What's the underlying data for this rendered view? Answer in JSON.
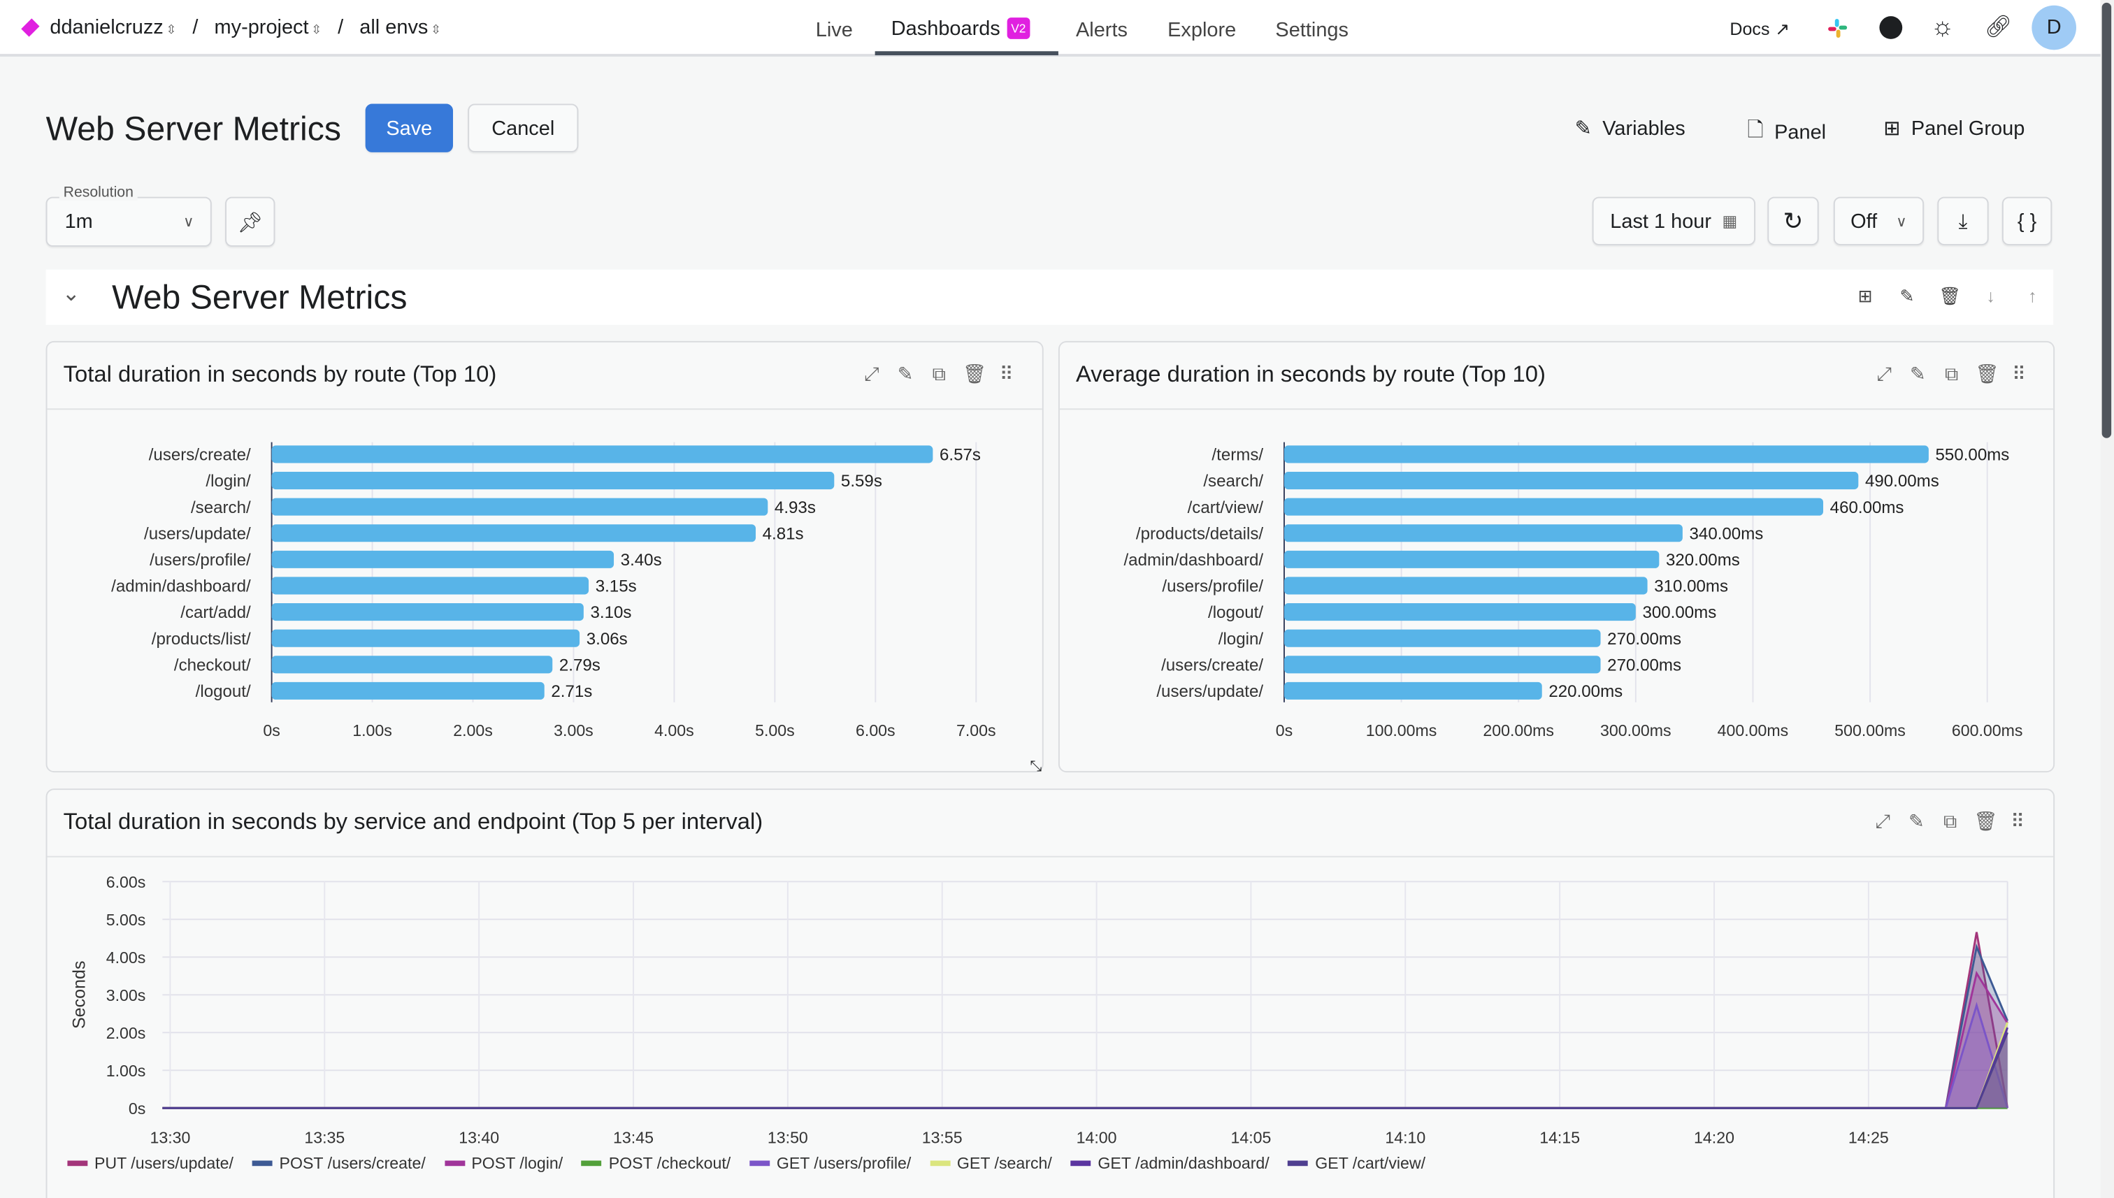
{
  "topbar": {
    "breadcrumb": [
      {
        "label": "ddanielcruzz"
      },
      {
        "label": "my-project"
      },
      {
        "label": "all envs"
      }
    ],
    "separator": "/",
    "brand_color": "#e020e0",
    "nav": [
      {
        "label": "Live"
      },
      {
        "label": "Dashboards",
        "badge": "V2",
        "active": true
      },
      {
        "label": "Alerts"
      },
      {
        "label": "Explore"
      },
      {
        "label": "Settings"
      }
    ],
    "docs_label": "Docs",
    "avatar_initial": "D",
    "icons": [
      "external-link-icon",
      "slack-icon",
      "github-icon",
      "sun-icon",
      "link-icon"
    ]
  },
  "header": {
    "title": "Web Server Metrics",
    "save_label": "Save",
    "cancel_label": "Cancel",
    "save_color": "#3779d9",
    "actions": [
      {
        "label": "Variables",
        "icon": "pencil-icon"
      },
      {
        "label": "Panel",
        "icon": "add-file-icon"
      },
      {
        "label": "Panel Group",
        "icon": "add-box-icon"
      }
    ]
  },
  "toolbar": {
    "resolution_label": "Resolution",
    "resolution_value": "1m",
    "time_range": "Last 1 hour",
    "refresh_interval": "Off",
    "json_label": "{ }"
  },
  "group": {
    "title": "Web Server Metrics"
  },
  "panels": [
    {
      "title": "Total duration in seconds by route (Top 10)"
    },
    {
      "title": "Average duration in seconds by route (Top 10)"
    },
    {
      "title": "Total duration in seconds by service and endpoint (Top 5 per interval)"
    }
  ],
  "chart_data": [
    {
      "type": "bar",
      "orientation": "horizontal",
      "color": "#58b4e8",
      "categories": [
        "/users/create/",
        "/login/",
        "/search/",
        "/users/update/",
        "/users/profile/",
        "/admin/dashboard/",
        "/cart/add/",
        "/products/list/",
        "/checkout/",
        "/logout/"
      ],
      "values": [
        6.57,
        5.59,
        4.93,
        4.81,
        3.4,
        3.15,
        3.1,
        3.06,
        2.79,
        2.71
      ],
      "value_labels": [
        "6.57s",
        "5.59s",
        "4.93s",
        "4.81s",
        "3.40s",
        "3.15s",
        "3.10s",
        "3.06s",
        "2.79s",
        "2.71s"
      ],
      "xlim": [
        0,
        7
      ],
      "xticks": [
        0,
        1,
        2,
        3,
        4,
        5,
        6,
        7
      ],
      "xtick_labels": [
        "0s",
        "1.00s",
        "2.00s",
        "3.00s",
        "4.00s",
        "5.00s",
        "6.00s",
        "7.00s"
      ],
      "grid": true
    },
    {
      "type": "bar",
      "orientation": "horizontal",
      "color": "#58b4e8",
      "categories": [
        "/terms/",
        "/search/",
        "/cart/view/",
        "/products/details/",
        "/admin/dashboard/",
        "/users/profile/",
        "/logout/",
        "/login/",
        "/users/create/",
        "/users/update/"
      ],
      "values": [
        550,
        490,
        460,
        340,
        320,
        310,
        300,
        270,
        270,
        220
      ],
      "value_labels": [
        "550.00ms",
        "490.00ms",
        "460.00ms",
        "340.00ms",
        "320.00ms",
        "310.00ms",
        "300.00ms",
        "270.00ms",
        "270.00ms",
        "220.00ms"
      ],
      "xlim": [
        0,
        600
      ],
      "xticks": [
        0,
        100,
        200,
        300,
        400,
        500,
        600
      ],
      "xtick_labels": [
        "0s",
        "100.00ms",
        "200.00ms",
        "300.00ms",
        "400.00ms",
        "500.00ms",
        "600.00ms"
      ],
      "grid": true
    },
    {
      "type": "area",
      "ylabel": "Seconds",
      "ylim": [
        0,
        6
      ],
      "yticks": [
        0,
        1,
        2,
        3,
        4,
        5,
        6
      ],
      "ytick_labels": [
        "0s",
        "1.00s",
        "2.00s",
        "3.00s",
        "4.00s",
        "5.00s",
        "6.00s"
      ],
      "xlim": [
        "13:29:45",
        "14:29:30"
      ],
      "xtick_labels": [
        "13:30",
        "13:35",
        "13:40",
        "13:45",
        "13:50",
        "13:55",
        "14:00",
        "14:05",
        "14:10",
        "14:15",
        "14:20",
        "14:25"
      ],
      "grid": true,
      "legend": "bottom",
      "series": [
        {
          "name": "PUT /users/update/",
          "color": "#a3357a",
          "points": [
            [
              "13:29:45",
              0
            ],
            [
              "14:27:30",
              0
            ],
            [
              "14:28:30",
              4.66
            ],
            [
              "14:29:30",
              0
            ]
          ]
        },
        {
          "name": "POST /users/create/",
          "color": "#3d5a94",
          "points": [
            [
              "13:29:45",
              0
            ],
            [
              "14:27:30",
              0
            ],
            [
              "14:28:30",
              4.27
            ],
            [
              "14:29:30",
              2.31
            ]
          ]
        },
        {
          "name": "POST /login/",
          "color": "#a0359a",
          "points": [
            [
              "13:29:45",
              0
            ],
            [
              "14:27:30",
              0
            ],
            [
              "14:28:30",
              3.57
            ],
            [
              "14:29:30",
              2.25
            ]
          ]
        },
        {
          "name": "POST /checkout/",
          "color": "#52a03a",
          "points": [
            [
              "13:29:45",
              0
            ],
            [
              "14:29:30",
              0
            ]
          ]
        },
        {
          "name": "GET /users/profile/",
          "color": "#7b55c8",
          "points": [
            [
              "13:29:45",
              0
            ],
            [
              "14:27:30",
              0
            ],
            [
              "14:28:30",
              2.72
            ],
            [
              "14:29:30",
              0
            ]
          ]
        },
        {
          "name": "GET /search/",
          "color": "#dbe57e",
          "points": [
            [
              "13:29:45",
              0
            ],
            [
              "14:28:30",
              0
            ],
            [
              "14:29:30",
              2.27
            ]
          ]
        },
        {
          "name": "GET /admin/dashboard/",
          "color": "#5b35a0",
          "points": [
            [
              "13:29:45",
              0
            ],
            [
              "14:28:30",
              0
            ],
            [
              "14:29:30",
              2.13
            ]
          ]
        },
        {
          "name": "GET /cart/view/",
          "color": "#4f3f90",
          "points": [
            [
              "13:29:45",
              0
            ],
            [
              "14:28:30",
              0
            ],
            [
              "14:29:30",
              2.0
            ]
          ]
        }
      ]
    }
  ]
}
